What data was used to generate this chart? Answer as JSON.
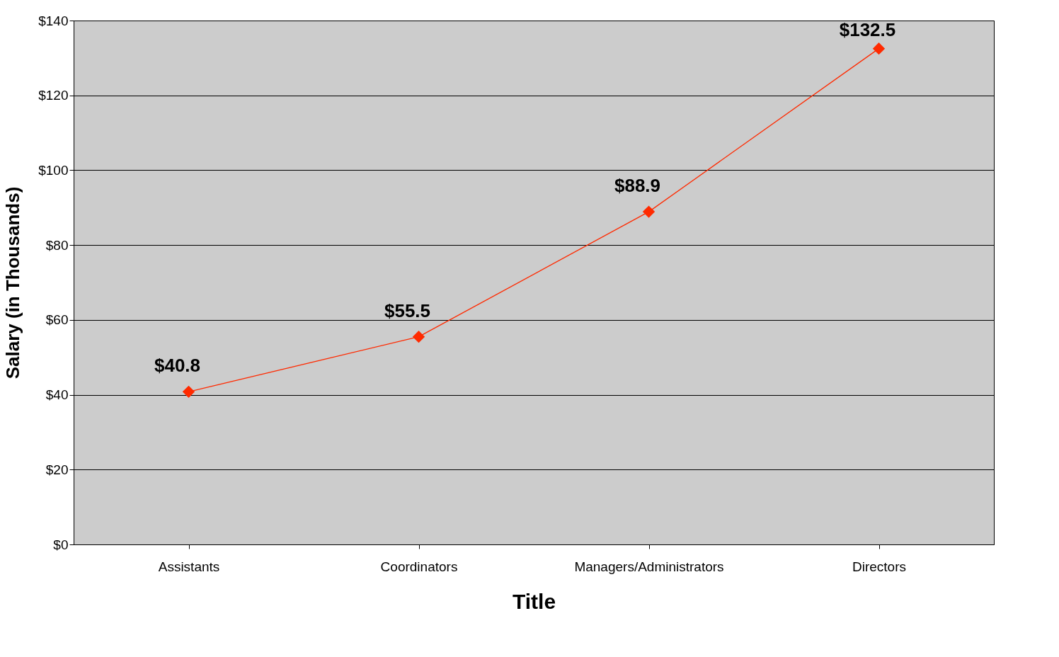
{
  "chart_data": {
    "type": "line",
    "xlabel": "Title",
    "ylabel": "Salary (in Thousands)",
    "categories": [
      "Assistants",
      "Coordinators",
      "Managers/Administrators",
      "Directors"
    ],
    "series": [
      {
        "color": "#ff2a00",
        "values": [
          40.8,
          55.5,
          88.9,
          132.5
        ],
        "value_labels": [
          "$40.8",
          "$55.5",
          "$88.9",
          "$132.5"
        ]
      }
    ],
    "ylim": [
      0,
      140
    ],
    "yticks": [
      {
        "value": 0,
        "label": "$0"
      },
      {
        "value": 20,
        "label": "$20"
      },
      {
        "value": 40,
        "label": "$40"
      },
      {
        "value": 60,
        "label": "$60"
      },
      {
        "value": 80,
        "label": "$80"
      },
      {
        "value": 100,
        "label": "$100"
      },
      {
        "value": 120,
        "label": "$120"
      },
      {
        "value": 140,
        "label": "$140"
      }
    ],
    "grid": "y",
    "marker": "diamond",
    "line_style": "solid"
  }
}
